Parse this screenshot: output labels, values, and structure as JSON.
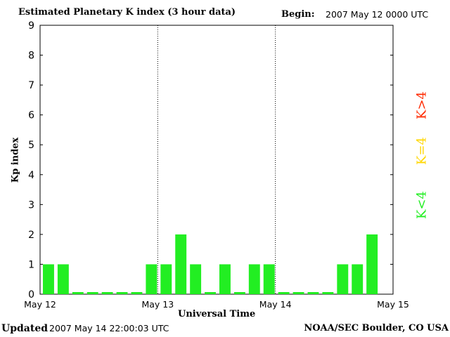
{
  "header": {
    "title": "Estimated Planetary K index (3 hour data)",
    "begin_label": "Begin:",
    "begin_value": "2007 May 12 0000 UTC"
  },
  "footer": {
    "updated_label": "Updated",
    "updated_value": "2007 May 14 22:00:03 UTC",
    "credit": "NOAA/SEC Boulder, CO USA"
  },
  "legend": [
    {
      "label": "K>4",
      "color": "#ff2a00"
    },
    {
      "label": "K=4",
      "color": "#ffd700"
    },
    {
      "label": "K<4",
      "color": "#22ee22"
    }
  ],
  "chart_data": {
    "type": "bar",
    "title": "Estimated Planetary K index (3 hour data)",
    "xlabel": "Universal Time",
    "ylabel": "Kp index",
    "ylim": [
      0,
      9
    ],
    "yticks": [
      0,
      1,
      2,
      3,
      4,
      5,
      6,
      7,
      8,
      9
    ],
    "x_ticks": [
      "May 12",
      "May 13",
      "May 14",
      "May 15"
    ],
    "bar_color": "#22ee22",
    "day_separators": true,
    "values": [
      1,
      1,
      0,
      0,
      0,
      0,
      0,
      1,
      1,
      2,
      1,
      0,
      1,
      0,
      1,
      1,
      0,
      0,
      0,
      0,
      1,
      1,
      2
    ]
  }
}
